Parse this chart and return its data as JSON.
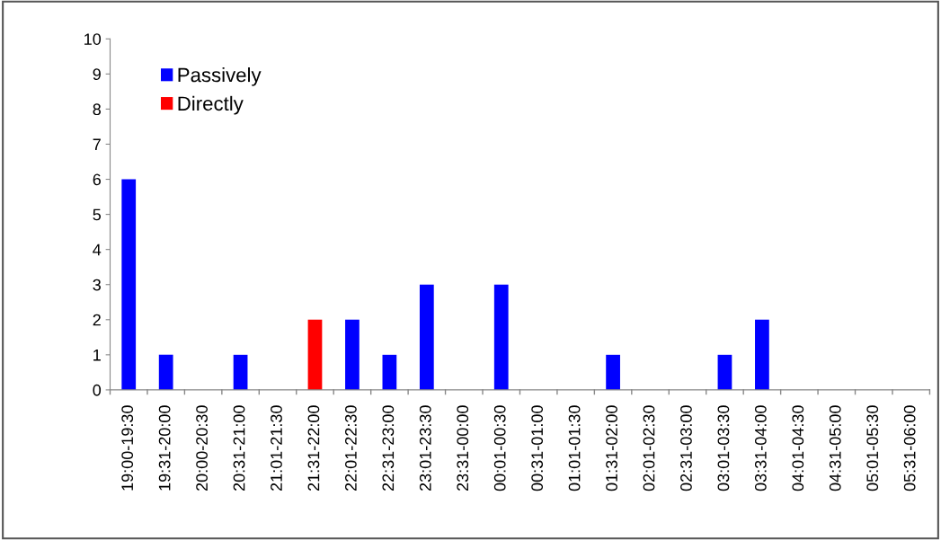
{
  "chart_data": {
    "type": "bar",
    "stacked": true,
    "categories": [
      "19:00-19:30",
      "19:31-20:00",
      "20:00-20:30",
      "20:31-21:00",
      "21:01-21:30",
      "21:31-22:00",
      "22:01-22:30",
      "22:31-23:00",
      "23:01-23:30",
      "23:31-00:00",
      "00:01-00:30",
      "00:31-01:00",
      "01:01-01:30",
      "01:31-02:00",
      "02:01-02:30",
      "02:31-03:00",
      "03:01-03:30",
      "03:31-04:00",
      "04:01-04:30",
      "04:31-05:00",
      "05:01-05:30",
      "05:31-06:00"
    ],
    "series": [
      {
        "name": "Passively",
        "color": "#0000ff",
        "values": [
          6,
          1,
          0,
          1,
          0,
          0,
          2,
          1,
          3,
          0,
          3,
          0,
          0,
          1,
          0,
          0,
          1,
          2,
          0,
          0,
          0,
          0
        ]
      },
      {
        "name": "Directly",
        "color": "#ff0000",
        "values": [
          0,
          0,
          0,
          0,
          0,
          2,
          0,
          0,
          0,
          0,
          0,
          0,
          0,
          0,
          0,
          0,
          0,
          0,
          0,
          0,
          0,
          0
        ]
      }
    ],
    "ylim": [
      0,
      10
    ],
    "yticks": [
      0,
      1,
      2,
      3,
      4,
      5,
      6,
      7,
      8,
      9,
      10
    ],
    "grid": false,
    "legend": "top left"
  }
}
